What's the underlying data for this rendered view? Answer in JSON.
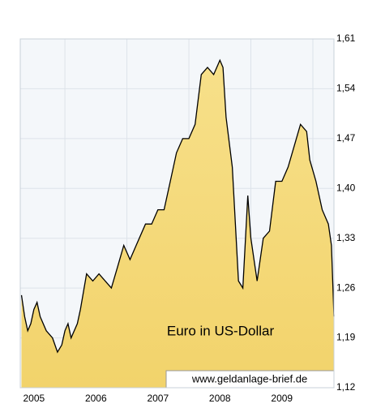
{
  "chart_data": {
    "type": "area",
    "annotation": "Euro in US-Dollar",
    "source": "www.geldanlage-brief.de",
    "year_labels": [
      "2005",
      "2006",
      "2007",
      "2008",
      "2009"
    ],
    "year_label_positions": [
      2005.5,
      2006.5,
      2007.5,
      2008.5,
      2009.5
    ],
    "x": [
      2005.3,
      2005.35,
      2005.4,
      2005.45,
      2005.5,
      2005.55,
      2005.6,
      2005.65,
      2005.7,
      2005.8,
      2005.88,
      2005.95,
      2006.0,
      2006.05,
      2006.1,
      2006.2,
      2006.25,
      2006.35,
      2006.45,
      2006.55,
      2006.65,
      2006.75,
      2006.85,
      2006.95,
      2007.05,
      2007.15,
      2007.3,
      2007.4,
      2007.5,
      2007.6,
      2007.7,
      2007.8,
      2007.9,
      2008.0,
      2008.1,
      2008.2,
      2008.3,
      2008.4,
      2008.5,
      2008.55,
      2008.6,
      2008.7,
      2008.8,
      2008.87,
      2008.95,
      2009.0,
      2009.1,
      2009.2,
      2009.3,
      2009.4,
      2009.5,
      2009.6,
      2009.7,
      2009.8,
      2009.9,
      2009.95,
      2010.05,
      2010.15,
      2010.25,
      2010.3,
      2010.34
    ],
    "values": [
      1.25,
      1.22,
      1.2,
      1.21,
      1.23,
      1.24,
      1.22,
      1.21,
      1.2,
      1.19,
      1.17,
      1.18,
      1.2,
      1.21,
      1.19,
      1.21,
      1.23,
      1.28,
      1.27,
      1.28,
      1.27,
      1.26,
      1.29,
      1.32,
      1.3,
      1.32,
      1.35,
      1.35,
      1.37,
      1.37,
      1.41,
      1.45,
      1.47,
      1.47,
      1.49,
      1.56,
      1.57,
      1.56,
      1.58,
      1.57,
      1.5,
      1.43,
      1.27,
      1.26,
      1.39,
      1.33,
      1.27,
      1.33,
      1.34,
      1.41,
      1.41,
      1.43,
      1.46,
      1.49,
      1.48,
      1.44,
      1.41,
      1.37,
      1.35,
      1.32,
      1.22
    ],
    "color": "#f2d36b",
    "line_color": "#000000",
    "xlim": [
      2005.28,
      2010.34
    ],
    "xticks": [
      2006,
      2007,
      2008,
      2009,
      2010
    ],
    "ylim": [
      1.12,
      1.61
    ],
    "yticks": [
      {
        "value": 1.12,
        "label": "1,12"
      },
      {
        "value": 1.19,
        "label": "1,19"
      },
      {
        "value": 1.26,
        "label": "1,26"
      },
      {
        "value": 1.33,
        "label": "1,33"
      },
      {
        "value": 1.4,
        "label": "1,40"
      },
      {
        "value": 1.47,
        "label": "1,47"
      },
      {
        "value": 1.54,
        "label": "1,54"
      },
      {
        "value": 1.61,
        "label": "1,61"
      }
    ],
    "grid": true
  }
}
